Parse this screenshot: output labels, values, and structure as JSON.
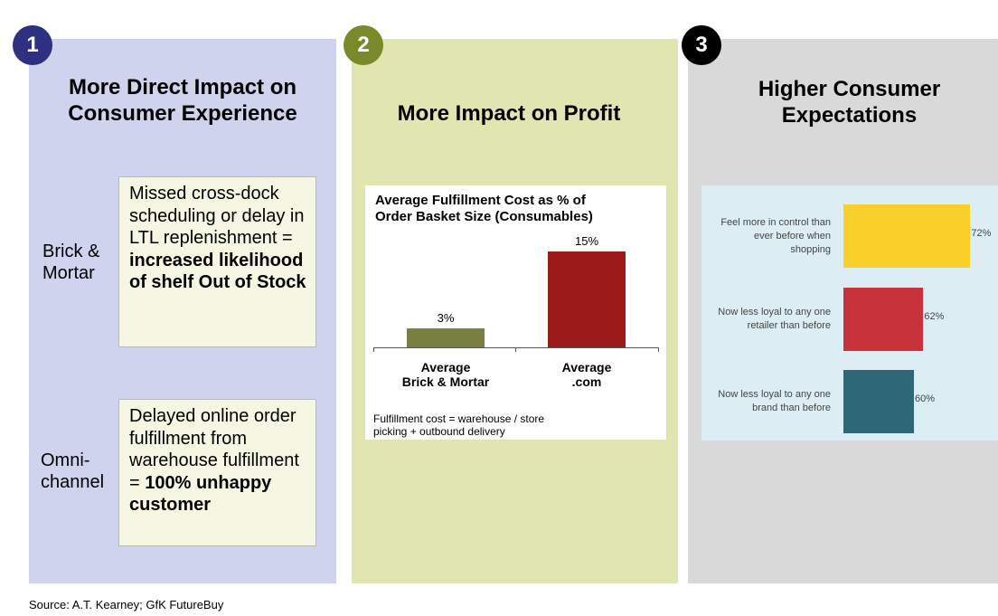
{
  "panels": [
    {
      "number": "1",
      "title_line1": "More Direct Impact on",
      "title_line2": "Consumer Experience",
      "color": "#2e3080",
      "rows": [
        {
          "label_line1": "Brick &",
          "label_line2": "Mortar",
          "text_plain": "Missed cross-dock scheduling or delay in LTL replenishment = ",
          "text_bold": "increased likelihood of shelf Out of Stock"
        },
        {
          "label_line1": "Omni-",
          "label_line2": "channel",
          "text_plain": "Delayed online order fulfillment from warehouse fulfillment = ",
          "text_bold": "100% unhappy customer"
        }
      ]
    },
    {
      "number": "2",
      "title": "More Impact on Profit",
      "color": "#7a8a2a"
    },
    {
      "number": "3",
      "title_line1": "Higher Consumer",
      "title_line2": "Expectations",
      "color": "#000000"
    }
  ],
  "chart_data": [
    {
      "type": "bar",
      "title_line1": "Average Fulfillment  Cost as % of",
      "title_line2": "Order Basket Size (Consumables)",
      "categories": [
        [
          "Average",
          "Brick & Mortar"
        ],
        [
          "Average",
          ".com"
        ]
      ],
      "values": [
        3,
        15
      ],
      "data_labels": [
        "3%",
        "15%"
      ],
      "colors": [
        "#7a8040",
        "#9b1a1a"
      ],
      "ylim": [
        0,
        16
      ],
      "footnote_line1": "Fulfillment cost = warehouse / store",
      "footnote_line2": "picking + outbound delivery"
    },
    {
      "type": "bar",
      "orientation": "horizontal",
      "categories": [
        [
          "Feel more in control than",
          "ever before when",
          "shopping"
        ],
        [
          "Now less loyal to any one",
          "retailer than before"
        ],
        [
          "Now less loyal to any one",
          "brand than before"
        ]
      ],
      "values": [
        72,
        62,
        60
      ],
      "data_labels": [
        "72%",
        "62%",
        "60%"
      ],
      "colors": [
        "#f9cf2a",
        "#c8323a",
        "#2e6878"
      ],
      "xlim": [
        45,
        75
      ]
    }
  ],
  "source": "Source: A.T. Kearney; GfK FutureBuy"
}
